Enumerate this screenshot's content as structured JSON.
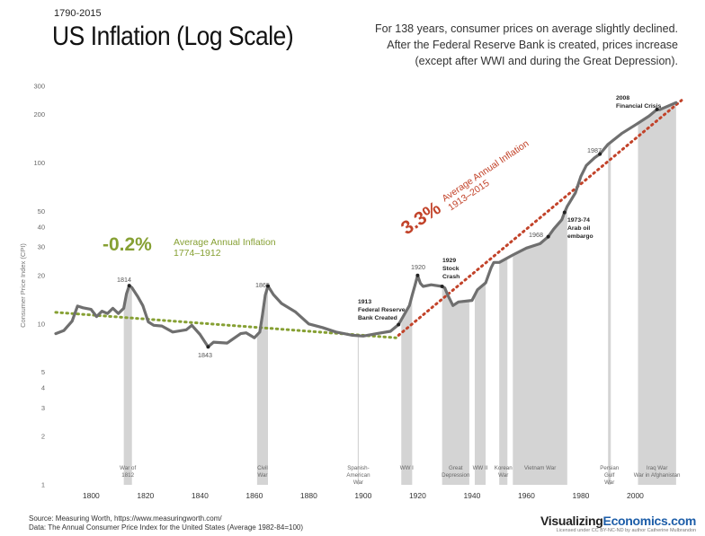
{
  "header": {
    "date_range": "1790-2015",
    "title": "US Inflation (Log Scale)",
    "subtitle_lines": [
      "For 138 years, consumer prices on average slightly declined.",
      "After the Federal Reserve Bank is created, prices increase",
      "(except after WWI and during the Great Depression)."
    ]
  },
  "footer": {
    "source": "Source: Measuring Worth, https://www.measuringworth.com/",
    "data_note": "Data: The Annual Consumer Price Index for the United States (Average 1982-84=100)",
    "brand_prefix": "Visualizing",
    "brand_suffix": "Economics.com",
    "license": "Licensed under CC BY-NC-ND by author Catherine Mulbrandon"
  },
  "colors": {
    "line": "#6f6f6f",
    "war_band": "#d4d4d4",
    "green": "#86a033",
    "red": "#c2432a"
  },
  "chart_data": {
    "type": "line",
    "title": "US Inflation (Log Scale)",
    "ylabel": "Consumer Price Index (CPI)",
    "xlabel": "",
    "y_scale": "log",
    "xlim": [
      1787,
      2021
    ],
    "ylim": [
      1,
      300
    ],
    "x_ticks": [
      1800,
      1820,
      1840,
      1860,
      1880,
      1900,
      1920,
      1940,
      1960,
      1980,
      2000
    ],
    "y_ticks": [
      1,
      2,
      3,
      4,
      5,
      10,
      20,
      30,
      40,
      50,
      100,
      200,
      300
    ],
    "grid": false,
    "series": [
      {
        "x": [
          1787,
          1790,
          1793,
          1795,
          1797,
          1800,
          1802,
          1804,
          1806,
          1808,
          1810,
          1812,
          1813,
          1814,
          1815,
          1817,
          1819,
          1821,
          1823,
          1826,
          1830,
          1835,
          1837,
          1840,
          1843,
          1845,
          1850,
          1855,
          1857,
          1860,
          1862,
          1863,
          1864,
          1865,
          1867,
          1870,
          1875,
          1880,
          1885,
          1890,
          1896,
          1900,
          1905,
          1910,
          1913,
          1917,
          1918,
          1919,
          1920,
          1921,
          1922,
          1925,
          1929,
          1930,
          1931,
          1933,
          1935,
          1940,
          1942,
          1945,
          1947,
          1948,
          1950,
          1955,
          1960,
          1965,
          1968,
          1970,
          1973,
          1974,
          1975,
          1978,
          1980,
          1982,
          1985,
          1987,
          1990,
          1995,
          2000,
          2005,
          2008,
          2009,
          2010,
          2015
        ],
        "y": [
          8.7,
          9.1,
          10.4,
          12.9,
          12.6,
          12.3,
          11.1,
          12.0,
          11.6,
          12.5,
          11.6,
          12.5,
          15.4,
          17.3,
          16.8,
          14.9,
          13.0,
          10.3,
          9.8,
          9.7,
          8.9,
          9.2,
          9.8,
          8.6,
          7.2,
          7.7,
          7.6,
          8.7,
          8.8,
          8.2,
          8.9,
          11.4,
          15.1,
          17.2,
          15.2,
          13.4,
          11.9,
          10.0,
          9.5,
          8.9,
          8.5,
          8.4,
          8.7,
          9.0,
          9.9,
          13.0,
          15.1,
          17.3,
          20.0,
          17.9,
          17.1,
          17.5,
          17.1,
          16.7,
          15.2,
          13.0,
          13.7,
          14.0,
          16.3,
          18.0,
          22.3,
          24.1,
          24.1,
          26.8,
          29.6,
          31.5,
          34.8,
          38.8,
          44.4,
          49.3,
          53.8,
          65.2,
          82.4,
          96.5,
          107.6,
          113.6,
          130.7,
          152.4,
          172.2,
          195.3,
          215.3,
          214.5,
          218.1,
          237.0
        ]
      }
    ],
    "trend_lines": [
      {
        "name": "-0.2%",
        "label": "Average Annual Inflation",
        "period": "1774–1912",
        "from": [
          1787,
          11.8
        ],
        "to": [
          1912,
          8.2
        ]
      },
      {
        "name": "3.3%",
        "label": "Average Annual Inflation",
        "period": "1913–2015",
        "from": [
          1913,
          8.5
        ],
        "to": [
          2017,
          245
        ]
      }
    ],
    "wars": [
      {
        "label": [
          "War of",
          "1812"
        ],
        "start": 1812,
        "end": 1815
      },
      {
        "label": [
          "Civil",
          "War"
        ],
        "start": 1861,
        "end": 1865
      },
      {
        "label": [
          "Spanish-",
          "American",
          "War"
        ],
        "start": 1898,
        "end": 1898
      },
      {
        "label": [
          "WW I"
        ],
        "start": 1914,
        "end": 1918
      },
      {
        "label": [
          "Great",
          "Depression"
        ],
        "start": 1929,
        "end": 1939
      },
      {
        "label": [
          "WW II"
        ],
        "start": 1941,
        "end": 1945
      },
      {
        "label": [
          "Korean",
          "War"
        ],
        "start": 1950,
        "end": 1953
      },
      {
        "label": [
          "Vietnam War"
        ],
        "start": 1955,
        "end": 1975
      },
      {
        "label": [
          "Persian",
          "Gulf",
          "War"
        ],
        "start": 1990,
        "end": 1991
      },
      {
        "label": [
          "Iraq War",
          "War in Afghanistan"
        ],
        "start": 2001,
        "end": 2015
      }
    ],
    "annotations": [
      {
        "text": [
          "1814"
        ],
        "x": 1814,
        "y": 17.3,
        "bold": false
      },
      {
        "text": [
          "1843"
        ],
        "x": 1843,
        "y": 7.2,
        "bold": false
      },
      {
        "text": [
          "1865"
        ],
        "x": 1865,
        "y": 17.2,
        "bold": false
      },
      {
        "text": [
          "1913",
          "Federal Reserve",
          "Bank Created"
        ],
        "x": 1913,
        "y": 9.9,
        "bold": true
      },
      {
        "text": [
          "1920"
        ],
        "x": 1920,
        "y": 20.0,
        "bold": false
      },
      {
        "text": [
          "1929",
          "Stock",
          "Crash"
        ],
        "x": 1929,
        "y": 17.1,
        "bold": true
      },
      {
        "text": [
          "1968"
        ],
        "x": 1968,
        "y": 34.8,
        "bold": false
      },
      {
        "text": [
          "1973-74",
          "Arab oil",
          "embargo"
        ],
        "x": 1974,
        "y": 49.3,
        "bold": true
      },
      {
        "text": [
          "1987"
        ],
        "x": 1987,
        "y": 113.6,
        "bold": false
      },
      {
        "text": [
          "2008",
          "Financial Crisis"
        ],
        "x": 2008,
        "y": 215.3,
        "bold": true
      }
    ]
  }
}
